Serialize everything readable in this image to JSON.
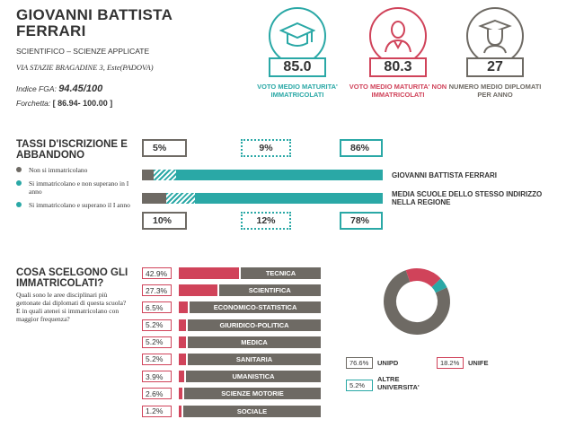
{
  "school": {
    "name": "GIOVANNI BATTISTA FERRARI",
    "type": "SCIENTIFICO – SCIENZE APPLICATE",
    "address": "VIA STAZIE BRAGADINE 3, Este(PADOVA)",
    "fga_label": "Indice FGA:",
    "fga_value": "94.45/100",
    "fork_label": "Forchetta:",
    "fork_value": "[ 86.94- 100.00 ]"
  },
  "kpis": [
    {
      "value": "85.0",
      "label": "VOTO MEDIO MATURITA' IMMATRICOLATI",
      "color": "#2aa8a6",
      "icon": "graduation-cap-icon"
    },
    {
      "value": "80.3",
      "label": "VOTO MEDIO MATURITA' NON IMMATRICOLATI",
      "color": "#d0435a",
      "icon": "person-silhouette-icon"
    },
    {
      "value": "27",
      "label": "NUMERO MEDIO DIPLOMATI PER ANNO",
      "color": "#6e6a64",
      "icon": "graduate-head-icon"
    }
  ],
  "enrollment": {
    "title": "TASSI D'ISCRIZIONE E ABBANDONO",
    "legend": [
      {
        "text": "Non si immatricolano",
        "color": "#6e6a64"
      },
      {
        "text": "Si immatricolano e non superano in I anno",
        "color": "#2aa8a6"
      },
      {
        "text": "Si immatricolano e superano il I anno",
        "color": "#2aa8a6"
      }
    ],
    "school_row": {
      "label": "GIOVANNI BATTISTA FERRARI",
      "values": [
        "5%",
        "9%",
        "86%"
      ],
      "fractions": [
        0.05,
        0.09,
        0.86
      ]
    },
    "region_row": {
      "label": "MEDIA SCUOLE DELLO STESSO INDIRIZZO NELLA REGIONE",
      "values": [
        "10%",
        "12%",
        "78%"
      ],
      "fractions": [
        0.1,
        0.12,
        0.78
      ]
    }
  },
  "choices": {
    "title": "COSA SCELGONO GLI IMMATRICOLATI?",
    "question1": "Quali sono le aree disciplinari più gettonate dai diplomati di questa scuola?",
    "question2": "E in quali atenei si immatricolano con maggior frequenza?",
    "categories": [
      {
        "pct": "42.9%",
        "value": 42.9,
        "label": "TECNICA"
      },
      {
        "pct": "27.3%",
        "value": 27.3,
        "label": "SCIENTIFICA"
      },
      {
        "pct": "6.5%",
        "value": 6.5,
        "label": "ECONOMICO-STATISTICA"
      },
      {
        "pct": "5.2%",
        "value": 5.2,
        "label": "GIURIDICO-POLITICA"
      },
      {
        "pct": "5.2%",
        "value": 5.2,
        "label": "MEDICA"
      },
      {
        "pct": "5.2%",
        "value": 5.2,
        "label": "SANITARIA"
      },
      {
        "pct": "3.9%",
        "value": 3.9,
        "label": "UMANISTICA"
      },
      {
        "pct": "2.6%",
        "value": 2.6,
        "label": "SCIENZE MOTORIE"
      },
      {
        "pct": "1.2%",
        "value": 1.2,
        "label": "SOCIALE"
      }
    ],
    "universities": [
      {
        "pct": "76.6%",
        "value": 76.6,
        "label": "UNIPD",
        "color": "#6e6a64"
      },
      {
        "pct": "18.2%",
        "value": 18.2,
        "label": "UNIFE",
        "color": "#d0435a"
      },
      {
        "pct": "5.2%",
        "value": 5.2,
        "label": "ALTRE UNIVERSITA'",
        "color": "#2aa8a6"
      }
    ]
  }
}
